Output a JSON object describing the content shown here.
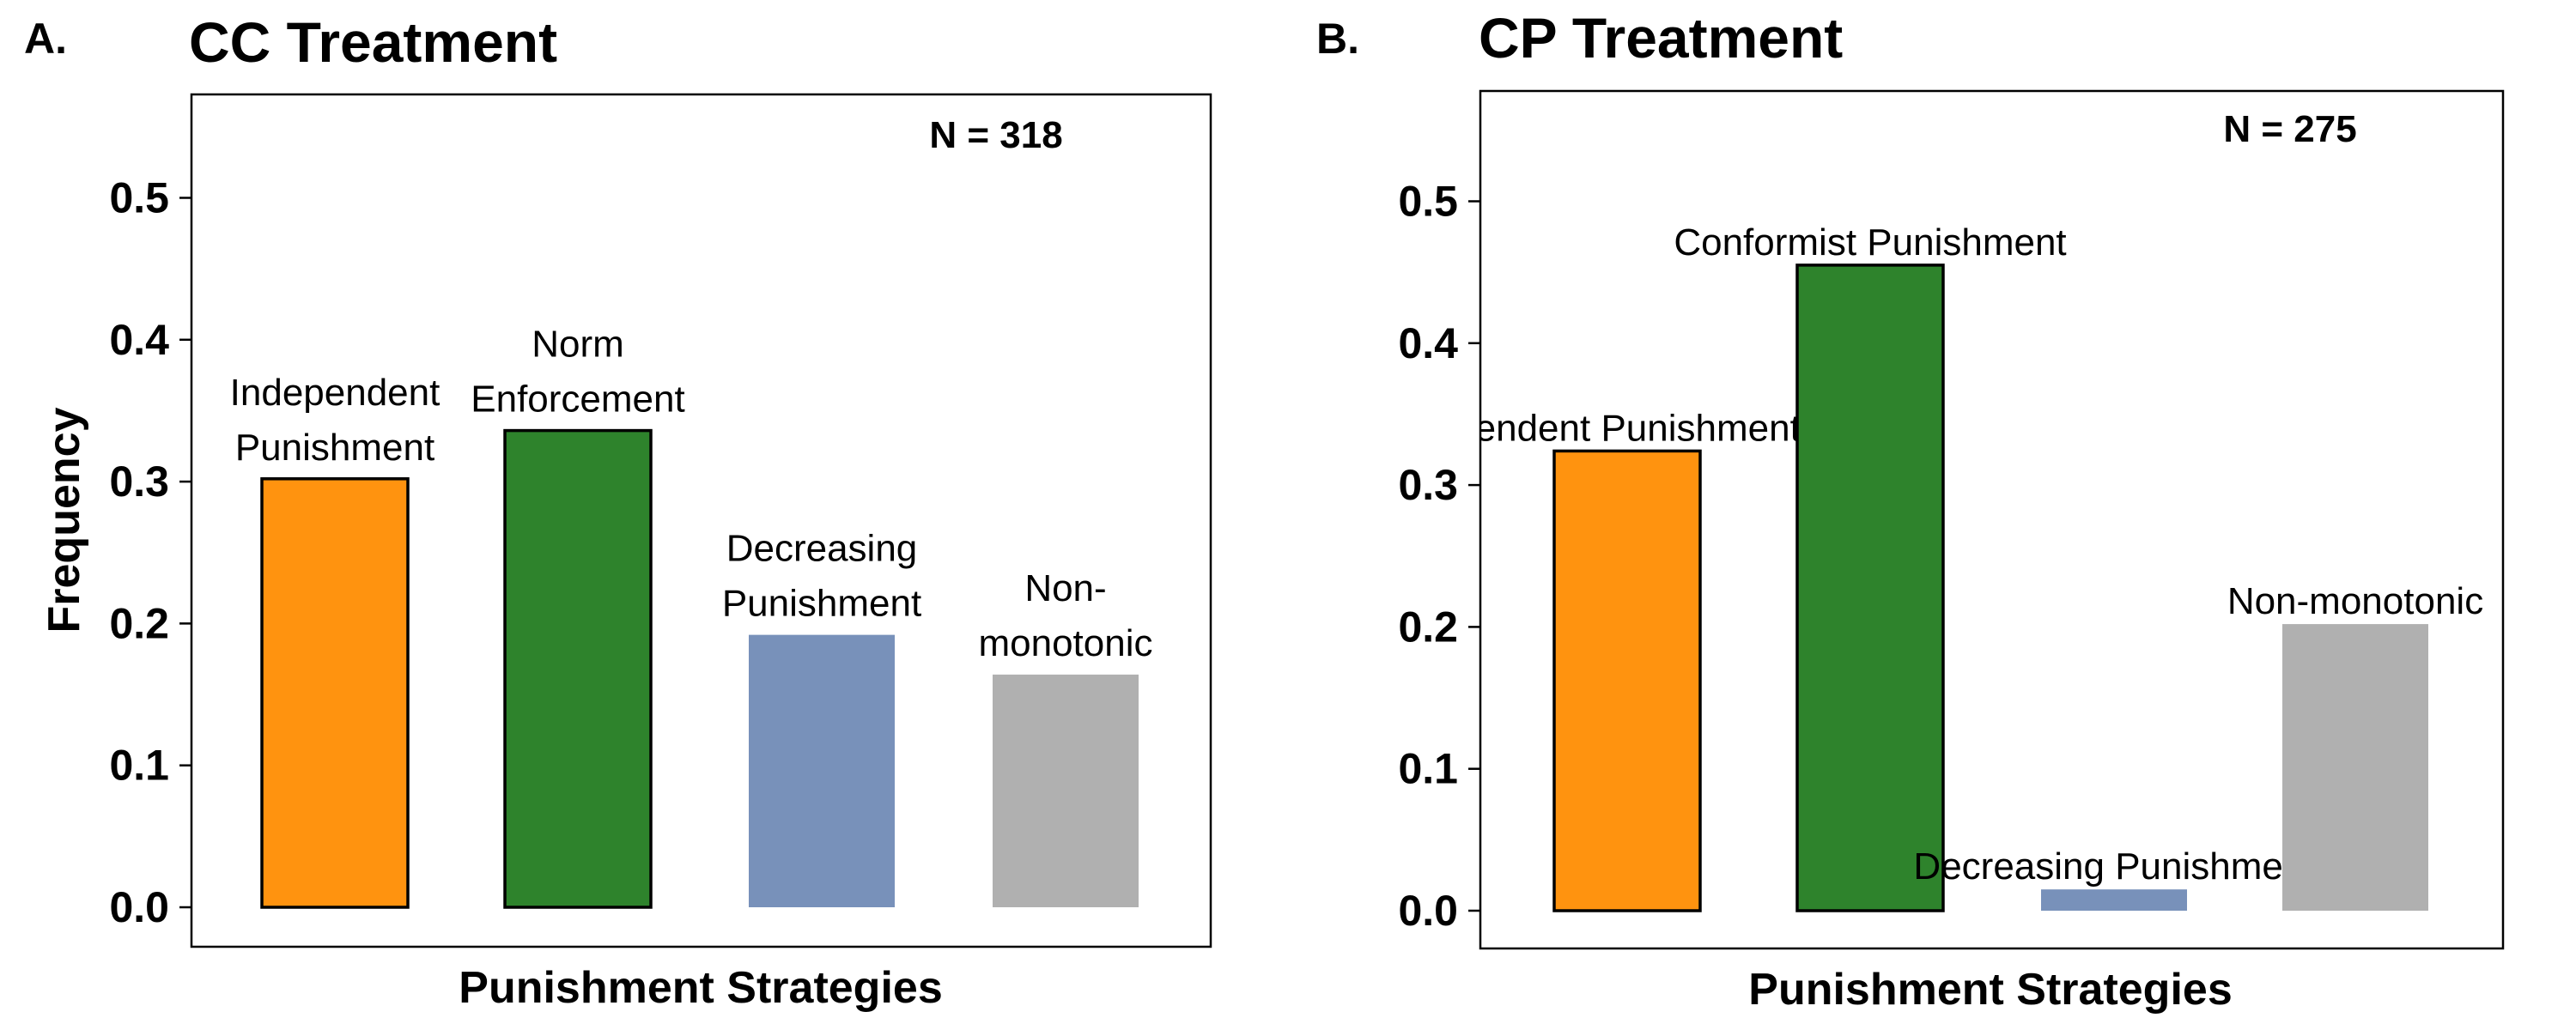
{
  "chart_data": [
    {
      "type": "bar",
      "panel": "A.",
      "title": "CC Treatment",
      "annotation": "N = 318",
      "xlabel": "Punishment Strategies",
      "ylabel": "Frequency",
      "ylim": [
        0,
        0.55
      ],
      "yticks": [
        "0.0",
        "0.1",
        "0.2",
        "0.3",
        "0.4",
        "0.5"
      ],
      "categories": [
        "Independent Punishment",
        "Norm Enforcement",
        "Decreasing Punishment",
        "Non-monotonic"
      ],
      "label_lines": [
        [
          "Independent",
          "Punishment"
        ],
        [
          "Norm",
          "Enforcement"
        ],
        [
          "Decreasing",
          "Punishment"
        ],
        [
          "Non-",
          "monotonic"
        ]
      ],
      "values": [
        0.302,
        0.336,
        0.192,
        0.164
      ],
      "colors": [
        "#FF930F",
        "#2E832C",
        "#7891BA",
        "#B0B0B0"
      ],
      "outlined": [
        true,
        true,
        false,
        false
      ],
      "grid": false,
      "legend": "none"
    },
    {
      "type": "bar",
      "panel": "B.",
      "title": "CP Treatment",
      "annotation": "N = 275",
      "xlabel": "Punishment Strategies",
      "ylabel": "",
      "ylim": [
        0,
        0.55
      ],
      "yticks": [
        "0.0",
        "0.1",
        "0.2",
        "0.3",
        "0.4",
        "0.5"
      ],
      "categories": [
        "Independent Punishment",
        "Conformist Punishment",
        "Decreasing Punishment",
        "Non-monotonic"
      ],
      "label_lines": [
        [
          "pendent Punishment"
        ],
        [
          "Conformist Punishment"
        ],
        [
          "Decreasing Punishment"
        ],
        [
          "Non-monotonic"
        ]
      ],
      "values": [
        0.324,
        0.455,
        0.015,
        0.202
      ],
      "colors": [
        "#FF930F",
        "#2E832C",
        "#7891BA",
        "#B0B0B0"
      ],
      "outlined": [
        true,
        true,
        false,
        false
      ],
      "grid": false,
      "legend": "none"
    }
  ]
}
